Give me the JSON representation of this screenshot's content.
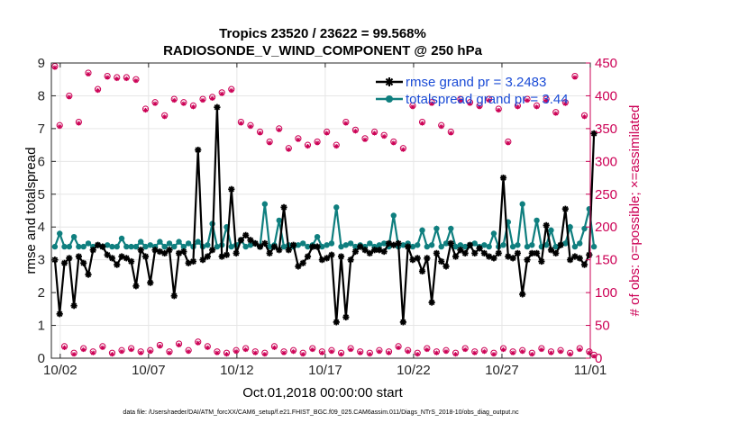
{
  "chart_data": {
    "type": "line",
    "title_line1": "Tropics 23520 / 23622 = 99.568%",
    "title_line2": "RADIOSONDE_V_WIND_COMPONENT @ 250 hPa",
    "xlabel": "Oct.01,2018 00:00:00 start",
    "ylabel_left": "rmse and totalspread",
    "ylabel_right": "# of obs: o=possible; ×=assimilated",
    "x_ticks": [
      "10/02",
      "10/07",
      "10/12",
      "10/17",
      "10/22",
      "10/27",
      "11/01"
    ],
    "x_tick_days": [
      1,
      6,
      11,
      16,
      21,
      26,
      31
    ],
    "xlim_days": [
      0.5,
      31.0
    ],
    "ylim_left": [
      0,
      9
    ],
    "yticks_left": [
      "0",
      "1",
      "2",
      "3",
      "4",
      "5",
      "6",
      "7",
      "8",
      "9"
    ],
    "ylim_right": [
      0,
      450
    ],
    "yticks_right": [
      "0",
      "50",
      "100",
      "150",
      "200",
      "250",
      "300",
      "350",
      "400",
      "450"
    ],
    "colors": {
      "rmse": "#000000",
      "spread": "#0f7f7f",
      "obs": "#cc0055",
      "legend_text": "#1a4bd6"
    },
    "series": [
      {
        "name": "rmse grand pr = 3.2483",
        "values": [
          3.0,
          1.35,
          2.9,
          3.05,
          1.6,
          3.1,
          2.9,
          2.55,
          3.3,
          3.45,
          3.4,
          3.15,
          3.05,
          2.85,
          3.1,
          3.05,
          2.95,
          2.2,
          3.3,
          3.1,
          2.3,
          3.3,
          3.25,
          3.2,
          3.3,
          1.9,
          3.2,
          3.25,
          2.9,
          2.95,
          6.35,
          3.0,
          3.1,
          3.3,
          7.65,
          3.1,
          3.15,
          5.15,
          3.2,
          3.6,
          3.75,
          3.6,
          3.5,
          3.4,
          3.5,
          3.2,
          3.4,
          3.3,
          4.6,
          3.3,
          3.45,
          2.8,
          2.9,
          3.1,
          3.4,
          3.4,
          3.0,
          3.05,
          3.15,
          1.1,
          3.1,
          1.25,
          3.0,
          3.25,
          3.4,
          3.3,
          3.2,
          3.3,
          3.3,
          3.25,
          3.5,
          3.45,
          3.5,
          1.1,
          3.4,
          3.0,
          3.05,
          2.65,
          3.05,
          1.7,
          3.2,
          2.95,
          2.8,
          3.5,
          3.1,
          3.3,
          3.2,
          3.45,
          3.2,
          3.35,
          3.2,
          3.1,
          3.05,
          3.2,
          5.5,
          3.1,
          3.05,
          3.2,
          1.95,
          3.0,
          3.2,
          3.2,
          2.95,
          4.05,
          3.3,
          3.2,
          3.45,
          4.55,
          3.0,
          3.1,
          3.05,
          2.85,
          3.15,
          6.85
        ]
      },
      {
        "name": "totalspread grand pr = 3.44",
        "values": [
          3.4,
          3.8,
          3.4,
          3.4,
          3.7,
          3.4,
          3.4,
          3.5,
          3.4,
          3.45,
          3.4,
          3.45,
          3.4,
          3.4,
          3.65,
          3.4,
          3.4,
          3.4,
          3.55,
          3.4,
          3.45,
          3.4,
          3.55,
          3.4,
          3.5,
          3.4,
          3.55,
          3.4,
          3.5,
          3.4,
          3.55,
          3.4,
          3.45,
          4.1,
          3.4,
          3.45,
          4.0,
          3.4,
          3.45,
          3.6,
          3.4,
          3.45,
          3.5,
          3.4,
          4.7,
          3.4,
          3.45,
          4.2,
          3.4,
          3.45,
          3.4,
          3.45,
          3.5,
          3.4,
          3.45,
          3.7,
          3.4,
          3.45,
          3.5,
          4.6,
          3.4,
          3.45,
          3.5,
          3.4,
          3.45,
          3.4,
          3.5,
          3.4,
          3.45,
          3.5,
          3.4,
          4.35,
          3.4,
          3.45,
          3.5,
          3.4,
          3.45,
          3.9,
          3.4,
          3.45,
          3.95,
          3.4,
          3.5,
          3.95,
          3.4,
          3.45,
          3.4,
          3.45,
          3.5,
          3.4,
          3.45,
          3.4,
          3.8,
          3.4,
          3.45,
          4.15,
          3.4,
          3.45,
          4.7,
          3.4,
          3.45,
          4.2,
          3.4,
          3.45,
          3.9,
          3.4,
          3.45,
          3.5,
          4.0,
          3.4,
          3.5,
          3.95,
          4.55,
          3.4
        ]
      },
      {
        "name": "obs possible",
        "values": [
          445,
          355,
          18,
          400,
          8,
          360,
          15,
          435,
          10,
          410,
          18,
          430,
          8,
          428,
          12,
          428,
          15,
          425,
          10,
          380,
          12,
          390,
          20,
          370,
          10,
          395,
          22,
          390,
          12,
          385,
          25,
          395,
          18,
          398,
          10,
          405,
          8,
          410,
          12,
          360,
          15,
          355,
          10,
          345,
          8,
          330,
          18,
          350,
          10,
          320,
          12,
          335,
          8,
          325,
          15,
          330,
          10,
          345,
          12,
          325,
          8,
          360,
          15,
          348,
          10,
          335,
          8,
          345,
          12,
          340,
          10,
          330,
          18,
          320,
          12,
          385,
          8,
          360,
          15,
          390,
          10,
          355,
          12,
          345,
          8,
          395,
          15,
          390,
          10,
          385,
          12,
          395,
          8,
          380,
          15,
          330,
          10,
          385,
          12,
          395,
          8,
          385,
          15,
          395,
          10,
          375,
          12,
          390,
          8,
          430,
          15,
          370,
          10,
          5
        ]
      },
      {
        "name": "obs assimilated",
        "values": [
          443,
          353,
          16,
          398,
          6,
          358,
          13,
          433,
          8,
          408,
          16,
          428,
          6,
          426,
          10,
          426,
          13,
          423,
          8,
          378,
          10,
          388,
          18,
          368,
          8,
          393,
          20,
          388,
          10,
          383,
          23,
          393,
          16,
          396,
          8,
          403,
          6,
          408,
          10,
          358,
          13,
          353,
          8,
          343,
          6,
          328,
          16,
          348,
          8,
          318,
          10,
          333,
          6,
          323,
          13,
          328,
          8,
          343,
          10,
          323,
          6,
          358,
          13,
          346,
          8,
          333,
          6,
          343,
          10,
          338,
          8,
          328,
          16,
          318,
          10,
          383,
          6,
          358,
          13,
          388,
          8,
          353,
          10,
          343,
          6,
          393,
          13,
          388,
          8,
          383,
          10,
          393,
          6,
          378,
          13,
          328,
          8,
          383,
          10,
          393,
          6,
          383,
          13,
          393,
          8,
          373,
          10,
          388,
          6,
          428,
          13,
          368,
          8,
          3
        ]
      }
    ],
    "legend_placement": "top-right"
  },
  "footer": {
    "datafile": "data file: /Users/raeder/DAI/ATM_forcXX/CAM6_setup/f.e21.FHIST_BGC.f09_025.CAM6assim.011/Diags_NTrS_2018-10/obs_diag_output.nc"
  }
}
